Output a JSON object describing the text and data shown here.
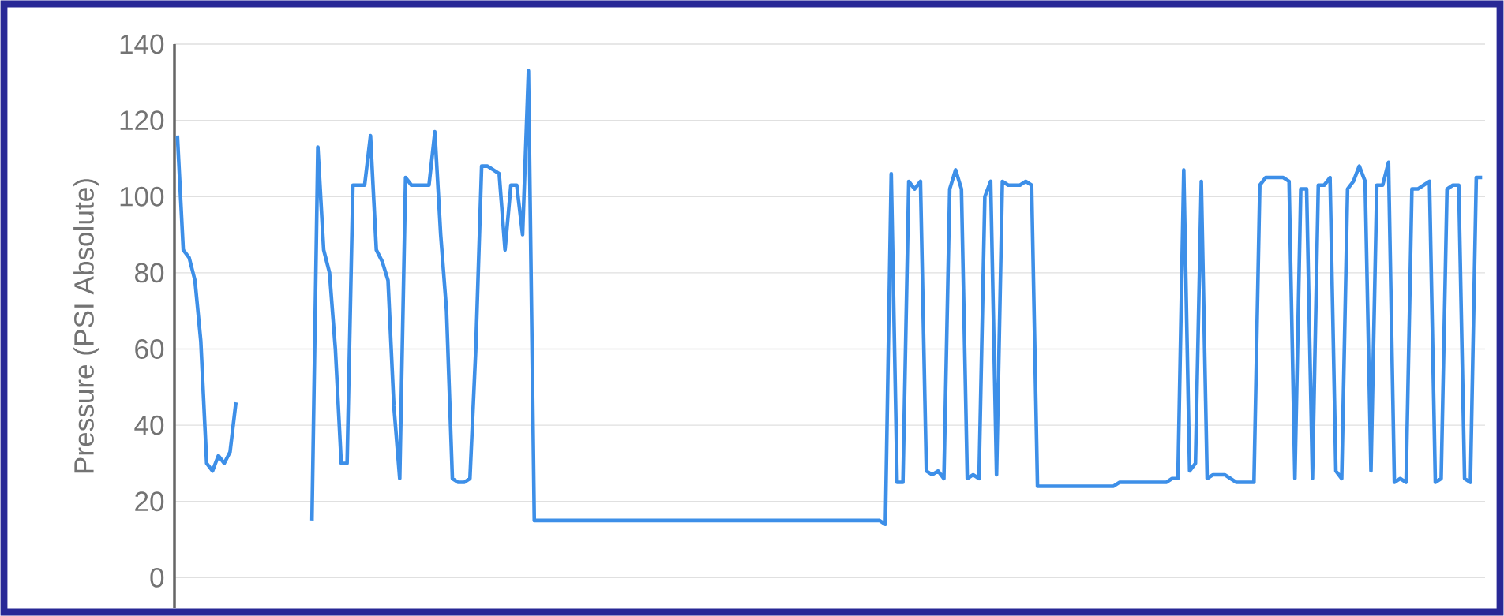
{
  "chart_data": {
    "type": "line",
    "ylabel": "Pressure (PSI Absolute)",
    "categories": [
      null,
      null,
      null,
      null,
      null,
      null,
      null,
      null,
      null,
      null,
      null,
      null,
      null,
      null,
      null,
      null,
      null,
      null,
      null,
      null,
      null,
      null,
      null,
      null,
      null,
      null,
      null,
      null,
      null,
      null,
      null,
      null,
      null,
      null,
      null,
      null,
      null,
      null,
      null,
      null,
      null,
      null,
      null,
      null,
      null,
      null,
      null,
      null,
      null,
      null,
      null,
      null,
      null,
      null,
      null,
      null,
      null,
      null,
      null,
      null,
      null,
      null,
      null,
      null,
      null,
      null,
      null,
      null,
      null,
      null,
      null,
      null,
      null,
      null,
      null,
      null,
      null,
      null,
      null,
      null,
      null,
      null,
      null,
      null,
      null,
      null,
      null,
      null,
      null,
      null,
      null,
      null,
      null,
      null,
      null,
      null,
      null,
      null,
      null,
      null,
      null,
      null,
      null,
      null,
      null,
      null,
      null,
      null,
      null,
      null,
      null,
      null,
      null,
      null,
      null,
      null,
      null,
      null,
      null,
      null,
      null,
      null,
      null,
      null,
      null,
      null,
      null,
      null,
      null,
      null,
      null,
      null,
      null,
      null,
      null,
      null,
      null,
      null,
      null,
      null,
      null,
      null,
      null,
      null,
      null,
      null,
      null,
      null,
      null,
      null,
      null,
      null,
      null,
      null,
      null,
      null,
      null,
      null,
      null,
      null,
      null,
      null,
      null,
      null,
      null,
      null,
      null,
      null,
      null,
      null,
      null,
      null,
      null,
      null,
      null,
      null,
      null,
      null,
      null,
      null,
      null,
      null,
      null,
      null,
      null,
      null,
      null,
      null,
      null,
      null,
      null,
      null,
      null,
      null,
      null,
      null,
      null,
      null,
      null,
      null,
      null,
      null,
      null,
      null,
      null,
      null,
      null,
      null,
      null,
      null,
      null,
      null,
      null,
      null,
      null,
      null,
      null,
      null,
      null,
      null,
      null,
      null,
      null,
      null
    ],
    "series": [
      {
        "color": "#3d8fe8",
        "values": [
          116,
          86,
          84,
          78,
          62,
          30,
          28,
          32,
          30,
          33,
          46,
          null,
          null,
          null,
          null,
          null,
          null,
          null,
          null,
          null,
          null,
          null,
          null,
          null,
          null,
          null,
          null,
          null,
          null,
          null,
          null,
          null,
          null,
          null,
          null,
          null,
          null,
          null,
          null,
          null,
          null,
          null,
          null,
          null,
          null,
          null,
          null,
          null,
          null,
          null,
          null,
          null,
          null,
          null,
          null,
          null,
          null,
          null,
          null,
          null,
          null,
          null,
          null,
          null,
          null,
          null,
          null,
          null,
          null,
          null,
          null,
          null,
          null,
          null,
          null,
          null,
          null,
          null,
          null,
          null,
          null,
          null,
          null,
          null,
          null,
          null,
          null,
          null,
          null,
          null,
          null,
          null,
          null,
          null,
          null,
          null,
          null,
          null,
          null,
          null,
          null,
          null,
          null,
          null,
          null,
          null,
          null,
          null,
          null,
          null,
          null,
          null,
          null,
          null,
          null,
          null,
          null,
          null,
          null,
          null,
          null,
          null,
          null,
          null,
          null,
          null,
          null,
          null,
          null,
          null,
          null,
          null,
          null,
          null,
          null,
          null,
          null,
          null,
          null,
          null,
          null,
          null,
          null,
          null,
          null,
          null,
          null,
          null,
          null,
          null,
          null,
          null,
          null,
          null,
          null,
          null,
          null,
          null,
          null,
          null,
          null,
          null,
          null,
          null,
          null,
          null,
          null,
          null,
          null,
          null,
          null,
          null,
          null,
          null,
          null,
          null,
          null,
          null,
          null,
          null,
          null,
          null,
          null,
          null,
          null,
          null,
          null,
          null,
          null,
          null,
          null,
          null,
          null,
          null,
          null,
          null,
          null,
          null,
          null,
          null,
          null,
          null,
          null,
          null,
          null,
          null,
          null,
          null,
          null,
          null,
          null,
          null,
          null,
          null,
          null,
          null,
          null,
          null,
          null,
          null,
          null,
          null,
          null,
          null
        ]
      },
      {
        "color": "#3d8fe8",
        "values": [
          null,
          null,
          null,
          null,
          null,
          null,
          null,
          null,
          null,
          null,
          null,
          null,
          null,
          null,
          null,
          null,
          null,
          null,
          null,
          null,
          null,
          null,
          null,
          15,
          113,
          86,
          80,
          60,
          30,
          30,
          103,
          103,
          103,
          116,
          86,
          83,
          78,
          45,
          26,
          105,
          103,
          103,
          103,
          103,
          117,
          90,
          70,
          26,
          25,
          25,
          26,
          60,
          108,
          108,
          107,
          106,
          86,
          103,
          103,
          90,
          133,
          15,
          15,
          15,
          15,
          15,
          15,
          15,
          15,
          15,
          15,
          15,
          15,
          15,
          15,
          15,
          15,
          15,
          15,
          15,
          15,
          15,
          15,
          15,
          15,
          15,
          15,
          15,
          15,
          15,
          15,
          15,
          15,
          15,
          15,
          15,
          15,
          15,
          15,
          15,
          15,
          15,
          15,
          15,
          15,
          15,
          15,
          15,
          15,
          15,
          15,
          15,
          15,
          15,
          15,
          15,
          15,
          15,
          15,
          15,
          15,
          14,
          106,
          25,
          25,
          104,
          102,
          104,
          28,
          27,
          28,
          26,
          102,
          107,
          102,
          26,
          27,
          26,
          100,
          104,
          27,
          104,
          103,
          103,
          103,
          104,
          103,
          24,
          24,
          24,
          24,
          24,
          24,
          24,
          24,
          24,
          24,
          24,
          24,
          24,
          24,
          25,
          25,
          25,
          25,
          25,
          25,
          25,
          25,
          25,
          26,
          26,
          107,
          28,
          30,
          104,
          26,
          27,
          27,
          27,
          26,
          25,
          25,
          25,
          25,
          103,
          105,
          105,
          105,
          105,
          104,
          26,
          102,
          102,
          26,
          103,
          103,
          105,
          28,
          26,
          102,
          104,
          108,
          104,
          28,
          103,
          103,
          109,
          25,
          26,
          25,
          102,
          102,
          103,
          104,
          25,
          26,
          102,
          103,
          103,
          26,
          25,
          105,
          105
        ]
      }
    ],
    "ylim": [
      -8,
      140
    ],
    "yticks": [
      0,
      20,
      40,
      60,
      80,
      100,
      120,
      140
    ],
    "grid": "y",
    "marker": "none",
    "line_style": "solid",
    "tick_labels": "y"
  }
}
